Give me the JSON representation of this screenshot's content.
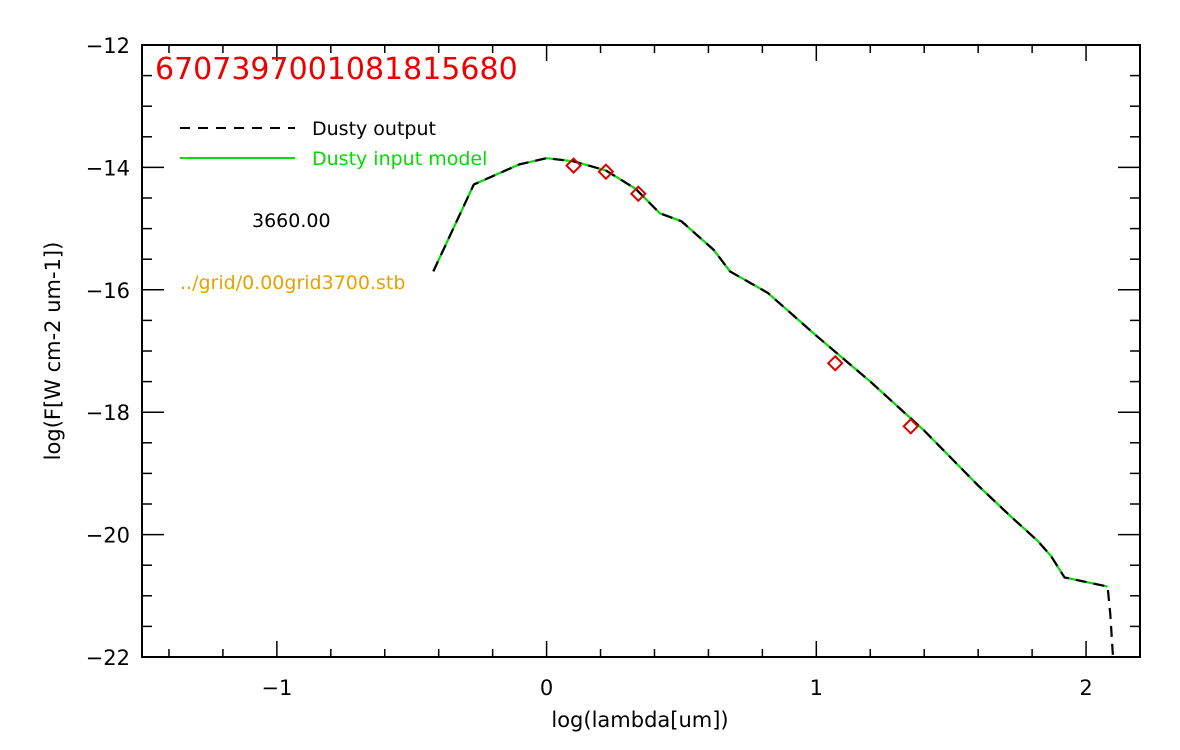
{
  "chart_data": {
    "type": "line",
    "title": "6707397001081815680",
    "xlabel": "log(lambda[um])",
    "ylabel": "log(F[W cm-2 um-1])",
    "xlim": [
      -1.5,
      2.2
    ],
    "ylim": [
      -22,
      -12
    ],
    "xticks": [
      -1,
      0,
      1,
      2
    ],
    "xtick_labels": [
      "−1",
      "0",
      "1",
      "2"
    ],
    "yticks": [
      -22,
      -20,
      -18,
      -16,
      -14,
      -12
    ],
    "ytick_labels": [
      "−22",
      "−20",
      "−18",
      "−16",
      "−14",
      "−12"
    ],
    "legend_placement": "top-left",
    "series": [
      {
        "name": "Dusty output",
        "color": "#000000",
        "style": "dashed",
        "points": [
          [
            -0.42,
            -15.7
          ],
          [
            -0.27,
            -14.28
          ],
          [
            -0.1,
            -13.95
          ],
          [
            0.0,
            -13.85
          ],
          [
            0.1,
            -13.9
          ],
          [
            0.22,
            -14.05
          ],
          [
            0.33,
            -14.35
          ],
          [
            0.42,
            -14.75
          ],
          [
            0.5,
            -14.88
          ],
          [
            0.62,
            -15.35
          ],
          [
            0.68,
            -15.7
          ],
          [
            0.82,
            -16.05
          ],
          [
            1.0,
            -16.75
          ],
          [
            1.2,
            -17.5
          ],
          [
            1.4,
            -18.3
          ],
          [
            1.6,
            -19.2
          ],
          [
            1.72,
            -19.7
          ],
          [
            1.82,
            -20.1
          ],
          [
            1.87,
            -20.35
          ],
          [
            1.92,
            -20.7
          ],
          [
            2.08,
            -20.85
          ],
          [
            2.09,
            -21.3
          ],
          [
            2.1,
            -22.0
          ]
        ]
      },
      {
        "name": "Dusty input model",
        "color": "#00dd00",
        "style": "solid",
        "points": [
          [
            -0.42,
            -15.7
          ],
          [
            -0.27,
            -14.28
          ],
          [
            -0.1,
            -13.95
          ],
          [
            0.0,
            -13.85
          ],
          [
            0.1,
            -13.9
          ],
          [
            0.22,
            -14.05
          ],
          [
            0.33,
            -14.35
          ],
          [
            0.42,
            -14.75
          ],
          [
            0.5,
            -14.88
          ],
          [
            0.62,
            -15.35
          ],
          [
            0.68,
            -15.7
          ],
          [
            0.82,
            -16.05
          ],
          [
            1.0,
            -16.75
          ],
          [
            1.2,
            -17.5
          ],
          [
            1.4,
            -18.3
          ],
          [
            1.6,
            -19.2
          ],
          [
            1.72,
            -19.7
          ],
          [
            1.82,
            -20.1
          ],
          [
            1.87,
            -20.35
          ],
          [
            1.92,
            -20.7
          ],
          [
            2.08,
            -20.85
          ]
        ]
      }
    ],
    "observed_points": {
      "color": "#dd0000",
      "marker": "diamond",
      "points": [
        [
          0.1,
          -13.97
        ],
        [
          0.22,
          -14.07
        ],
        [
          0.34,
          -14.43
        ],
        [
          1.07,
          -17.2
        ],
        [
          1.35,
          -18.23
        ]
      ]
    },
    "annotations": [
      {
        "text": "3660.00",
        "color": "#000000"
      },
      {
        "text": "../grid/0.00grid3700.stb",
        "color": "#e8a200"
      }
    ],
    "title_color": "#ee0000"
  }
}
